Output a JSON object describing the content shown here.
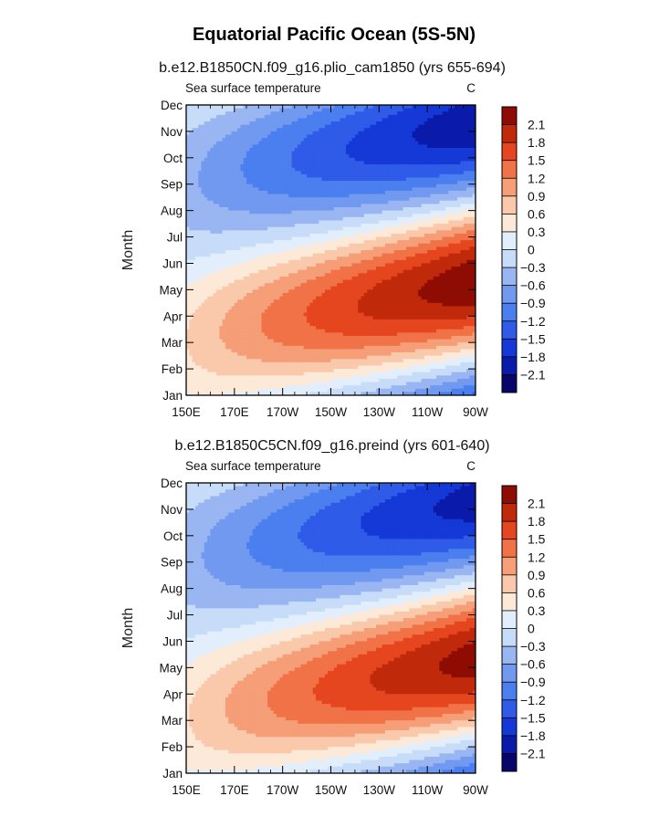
{
  "figure_title": "Equatorial Pacific Ocean (5S-5N)",
  "colors": {
    "levels": [
      "#08066b",
      "#0a1bab",
      "#1539d6",
      "#2f5be8",
      "#4b7fef",
      "#7199f0",
      "#9ab6f2",
      "#c6dcf8",
      "#e2eefb",
      "#fde9d8",
      "#fac9ab",
      "#f59e77",
      "#f07246",
      "#e5461f",
      "#c02a0b",
      "#8e0c03"
    ],
    "axis": "#000000"
  },
  "chart_data": [
    {
      "type": "heatmap",
      "subtitle": "b.e12.B1850CN.f09_g16.plio_cam1850 (yrs 655-694)",
      "left_label": "Sea surface temperature",
      "right_label": "C",
      "xlabel": "",
      "ylabel": "Month",
      "x_ticks": [
        "150E",
        "170E",
        "170W",
        "150W",
        "130W",
        "110W",
        "90W"
      ],
      "x_values": [
        150,
        170,
        190,
        210,
        230,
        250,
        270
      ],
      "xlim": [
        150,
        270
      ],
      "y_ticks": [
        "Jan",
        "Feb",
        "Mar",
        "Apr",
        "May",
        "Jun",
        "Jul",
        "Aug",
        "Sep",
        "Oct",
        "Nov",
        "Dec"
      ],
      "ylim": [
        1,
        12
      ],
      "colorbar_labels": [
        "2.1",
        "1.8",
        "1.5",
        "1.2",
        "0.9",
        "0.6",
        "0.3",
        "0",
        "-0.3",
        "-0.6",
        "-0.9",
        "-1.2",
        "-1.5",
        "-1.8",
        "-2.1"
      ],
      "contour_levels": [
        -2.1,
        -1.8,
        -1.5,
        -1.2,
        -0.9,
        -0.6,
        -0.3,
        0,
        0.3,
        0.6,
        0.9,
        1.2,
        1.5,
        1.8,
        2.1
      ],
      "field": {
        "warm_amp": 2.35,
        "cold_amp": 2.05,
        "grad_gain": 0.46
      }
    },
    {
      "type": "heatmap",
      "subtitle": "b.e12.B1850C5CN.f09_g16.preind (yrs 601-640)",
      "left_label": "Sea surface temperature",
      "right_label": "C",
      "xlabel": "",
      "ylabel": "Month",
      "x_ticks": [
        "150E",
        "170E",
        "170W",
        "150W",
        "130W",
        "110W",
        "90W"
      ],
      "x_values": [
        150,
        170,
        190,
        210,
        230,
        250,
        270
      ],
      "xlim": [
        150,
        270
      ],
      "y_ticks": [
        "Jan",
        "Feb",
        "Mar",
        "Apr",
        "May",
        "Jun",
        "Jul",
        "Aug",
        "Sep",
        "Oct",
        "Nov",
        "Dec"
      ],
      "ylim": [
        1,
        12
      ],
      "colorbar_labels": [
        "2.1",
        "1.8",
        "1.5",
        "1.2",
        "0.9",
        "0.6",
        "0.3",
        "0",
        "-0.3",
        "-0.6",
        "-0.9",
        "-1.2",
        "-1.5",
        "-1.8",
        "-2.1"
      ],
      "contour_levels": [
        -2.1,
        -1.8,
        -1.5,
        -1.2,
        -0.9,
        -0.6,
        -0.3,
        0,
        0.3,
        0.6,
        0.9,
        1.2,
        1.5,
        1.8,
        2.1
      ],
      "field": {
        "warm_amp": 2.25,
        "cold_amp": 1.95,
        "grad_gain": 0.5
      }
    }
  ]
}
